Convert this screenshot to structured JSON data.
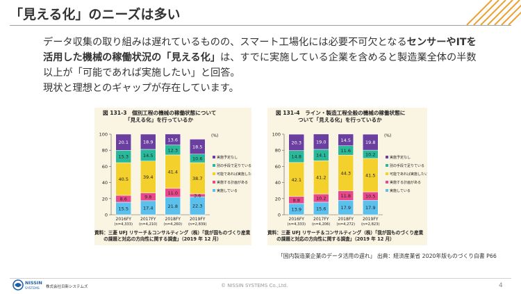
{
  "title": "「見える化」のニーズは多い",
  "lead": {
    "p1_a": "データ収集の取り組みは遅れているものの、スマート工場化には必要不可欠となる",
    "p1_b": "センサーやITを活用した機械の稼働状況の「見える化」",
    "p1_c": "は、すでに実施している企業を含めると製造業全体の半数以上が「可能であれば実施したい」と回答。",
    "p2": "現状と理想とのギャップが存在しています。"
  },
  "chart_data": [
    {
      "type": "bar",
      "stacked": true,
      "title_line1": "図 131-3　個別工程の機械の稼働状態について",
      "title_line2": "「見える化」を行っているか",
      "unit": "(%)",
      "ylim": [
        0,
        100
      ],
      "yticks": [
        "0",
        "20",
        "40",
        "60",
        "80",
        "100"
      ],
      "categories": [
        "2016FY",
        "2017FY",
        "2018FY",
        "2019FY"
      ],
      "category_n": [
        "(n=4,333)",
        "(n=4,210)",
        "(n=4,260)",
        "(n=2,839)"
      ],
      "series": [
        {
          "name": "実施している",
          "color": "#5bc0eb",
          "values": [
            15.5,
            17.4,
            21.8,
            22.3
          ]
        },
        {
          "name": "実施する計画がある",
          "color": "#e8488b",
          "values": [
            8.6,
            9.8,
            11.0,
            3.6
          ]
        },
        {
          "name": "可能であれば実施したい",
          "color": "#f3d02b",
          "values": [
            40.5,
            39.4,
            41.4,
            38.7
          ]
        },
        {
          "name": "別の手段で足りている",
          "color": "#29b89a",
          "values": [
            15.3,
            14.5,
            12.3,
            10.6
          ]
        },
        {
          "name": "実施予定なし",
          "color": "#6b3fa0",
          "values": [
            20.1,
            18.9,
            13.6,
            18.5
          ]
        }
      ],
      "source_line1": "資料：三菱 UFJ リサーチ＆コンサルティング（株）「我が国ものづくり産業",
      "source_line2": "　　の課題と対応の方向性に関する調査」（2019 年 12 月）"
    },
    {
      "type": "bar",
      "stacked": true,
      "title_line1": "図 131-4　ライン・製造工程全般の機械の稼働状態に",
      "title_line2": "ついて「見える化」を行っているか",
      "unit": "(%)",
      "ylim": [
        0,
        100
      ],
      "yticks": [
        "0",
        "20",
        "40",
        "60",
        "80",
        "100"
      ],
      "categories": [
        "2016FY",
        "2017FY",
        "2018FY",
        "2019FY"
      ],
      "category_n": [
        "(n=4,333)",
        "(n=4,206)",
        "(n=4,272)",
        "(n=2,823)"
      ],
      "series": [
        {
          "name": "実施している",
          "color": "#5bc0eb",
          "values": [
            13.9,
            15.6,
            17.9,
            17.9
          ]
        },
        {
          "name": "実施する計画がある",
          "color": "#e8488b",
          "values": [
            8.8,
            10.2,
            11.8,
            10.5
          ]
        },
        {
          "name": "可能であれば実施したい",
          "color": "#f3d02b",
          "values": [
            42.1,
            41.2,
            44.3,
            41.5
          ]
        },
        {
          "name": "別の手段で足りている",
          "color": "#29b89a",
          "values": [
            14.8,
            14.1,
            11.6,
            10.2
          ]
        },
        {
          "name": "実施予定なし",
          "color": "#6b3fa0",
          "values": [
            20.3,
            19.0,
            14.5,
            19.8
          ]
        }
      ],
      "source_line1": "資料：三菱 UFJ リサーチ＆コンサルティング（株）「我が国ものづくり産業",
      "source_line2": "　　の課題と対応の方向性に関する調査」（2019 年 12 月）"
    }
  ],
  "footer": {
    "source_note": "「国内製造業企業のデータ活用の遅れ」 出典：経済産業省 2020年版ものづくり白書 P66",
    "logo_brand": "NISSIN",
    "logo_sub": "SYSTEMS",
    "logo_company": "株式会社日新システムズ",
    "copyright": "© NISSIN SYSTEMS Co.,Ltd.",
    "page": "4"
  },
  "colors": {
    "accent_orange": "#f0a030",
    "accent_blue": "#1f5fa8"
  }
}
